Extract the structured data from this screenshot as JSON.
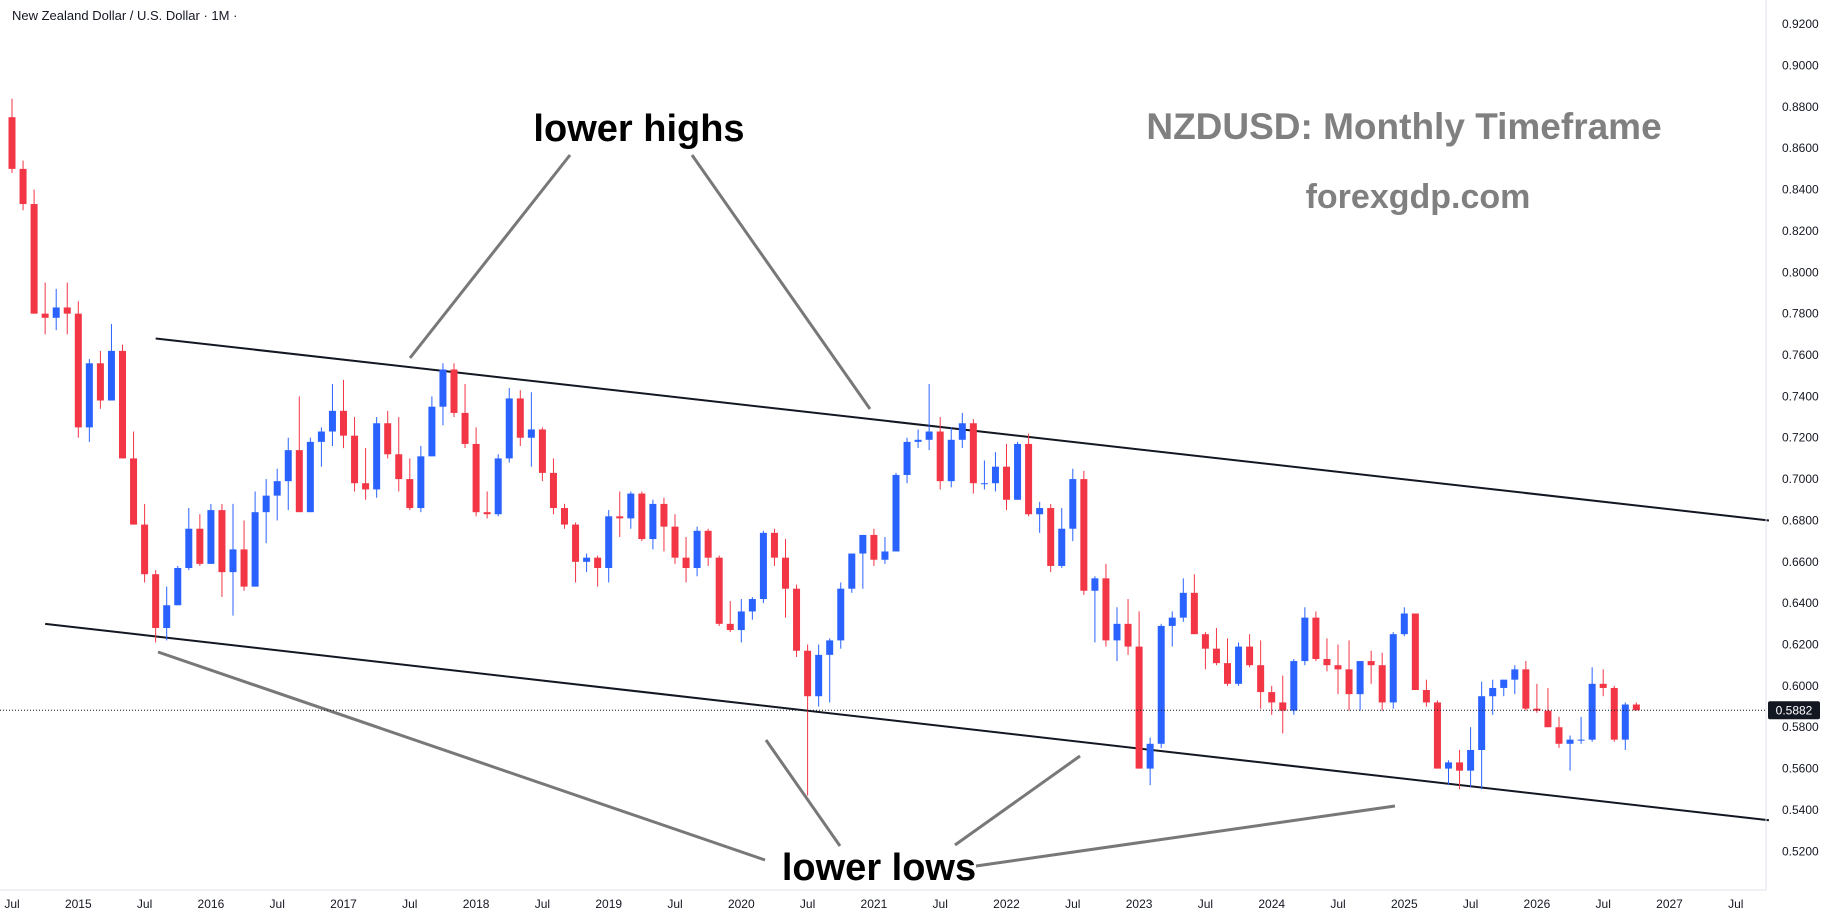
{
  "header": {
    "symbol": "New Zealand Dollar / U.S. Dollar · 1M ·"
  },
  "watermark": {
    "title": "NZDUSD: Monthly Timeframe",
    "site": "forexgdp.com"
  },
  "annotations": {
    "highs": "lower highs",
    "lows": "lower lows"
  },
  "colors": {
    "up": "#2962ff",
    "down": "#f23645",
    "axis": "#e0e3eb",
    "trend": "#131722",
    "pointer": "#787878",
    "price_tag": "#131722"
  },
  "chart_data": {
    "type": "candlestick",
    "timeframe": "1M",
    "x_start": "2014-07",
    "ylim": [
      0.51,
      0.922
    ],
    "yticks": [
      "0.9200",
      "0.9000",
      "0.8800",
      "0.8600",
      "0.8400",
      "0.8200",
      "0.8000",
      "0.7800",
      "0.7600",
      "0.7400",
      "0.7200",
      "0.7000",
      "0.6800",
      "0.6600",
      "0.6400",
      "0.6200",
      "0.6000",
      "0.5800",
      "0.5600",
      "0.5400",
      "0.5200"
    ],
    "xticks": [
      {
        "label": "Jul",
        "date": "2014-07"
      },
      {
        "label": "2015",
        "date": "2015-01"
      },
      {
        "label": "Jul",
        "date": "2015-07"
      },
      {
        "label": "2016",
        "date": "2016-01"
      },
      {
        "label": "Jul",
        "date": "2016-07"
      },
      {
        "label": "2017",
        "date": "2017-01"
      },
      {
        "label": "Jul",
        "date": "2017-07"
      },
      {
        "label": "2018",
        "date": "2018-01"
      },
      {
        "label": "Jul",
        "date": "2018-07"
      },
      {
        "label": "2019",
        "date": "2019-01"
      },
      {
        "label": "Jul",
        "date": "2019-07"
      },
      {
        "label": "2020",
        "date": "2020-01"
      },
      {
        "label": "Jul",
        "date": "2020-07"
      },
      {
        "label": "2021",
        "date": "2021-01"
      },
      {
        "label": "Jul",
        "date": "2021-07"
      },
      {
        "label": "2022",
        "date": "2022-01"
      },
      {
        "label": "Jul",
        "date": "2022-07"
      },
      {
        "label": "2023",
        "date": "2023-01"
      },
      {
        "label": "Jul",
        "date": "2023-07"
      },
      {
        "label": "2024",
        "date": "2024-01"
      },
      {
        "label": "Jul",
        "date": "2024-07"
      },
      {
        "label": "2025",
        "date": "2025-01"
      },
      {
        "label": "Jul",
        "date": "2025-07"
      },
      {
        "label": "2026",
        "date": "2026-01"
      },
      {
        "label": "Jul",
        "date": "2026-07"
      },
      {
        "label": "2027",
        "date": "2027-01"
      },
      {
        "label": "Jul",
        "date": "2027-07"
      }
    ],
    "last_price": "0.5882",
    "candles": [
      [
        0.875,
        0.884,
        0.848,
        0.85
      ],
      [
        0.85,
        0.854,
        0.83,
        0.833
      ],
      [
        0.833,
        0.84,
        0.78,
        0.78
      ],
      [
        0.78,
        0.795,
        0.77,
        0.778
      ],
      [
        0.778,
        0.792,
        0.772,
        0.783
      ],
      [
        0.783,
        0.795,
        0.77,
        0.78
      ],
      [
        0.78,
        0.786,
        0.72,
        0.725
      ],
      [
        0.725,
        0.758,
        0.718,
        0.756
      ],
      [
        0.756,
        0.762,
        0.734,
        0.738
      ],
      [
        0.738,
        0.775,
        0.738,
        0.762
      ],
      [
        0.762,
        0.765,
        0.71,
        0.71
      ],
      [
        0.71,
        0.723,
        0.678,
        0.678
      ],
      [
        0.678,
        0.688,
        0.65,
        0.654
      ],
      [
        0.654,
        0.656,
        0.621,
        0.628
      ],
      [
        0.628,
        0.648,
        0.622,
        0.639
      ],
      [
        0.639,
        0.658,
        0.639,
        0.657
      ],
      [
        0.657,
        0.686,
        0.656,
        0.676
      ],
      [
        0.676,
        0.683,
        0.658,
        0.659
      ],
      [
        0.659,
        0.688,
        0.659,
        0.685
      ],
      [
        0.685,
        0.688,
        0.643,
        0.655
      ],
      [
        0.655,
        0.688,
        0.634,
        0.666
      ],
      [
        0.666,
        0.68,
        0.646,
        0.648
      ],
      [
        0.648,
        0.694,
        0.648,
        0.684
      ],
      [
        0.684,
        0.7,
        0.669,
        0.692
      ],
      [
        0.692,
        0.705,
        0.68,
        0.699
      ],
      [
        0.699,
        0.72,
        0.685,
        0.714
      ],
      [
        0.714,
        0.74,
        0.685,
        0.684
      ],
      [
        0.684,
        0.72,
        0.684,
        0.718
      ],
      [
        0.718,
        0.725,
        0.706,
        0.723
      ],
      [
        0.723,
        0.746,
        0.716,
        0.733
      ],
      [
        0.733,
        0.748,
        0.715,
        0.721
      ],
      [
        0.721,
        0.73,
        0.694,
        0.698
      ],
      [
        0.698,
        0.715,
        0.69,
        0.695
      ],
      [
        0.695,
        0.73,
        0.691,
        0.727
      ],
      [
        0.727,
        0.733,
        0.71,
        0.712
      ],
      [
        0.712,
        0.73,
        0.694,
        0.7
      ],
      [
        0.7,
        0.71,
        0.685,
        0.686
      ],
      [
        0.686,
        0.716,
        0.684,
        0.711
      ],
      [
        0.711,
        0.74,
        0.711,
        0.735
      ],
      [
        0.735,
        0.756,
        0.726,
        0.753
      ],
      [
        0.753,
        0.756,
        0.73,
        0.732
      ],
      [
        0.732,
        0.746,
        0.715,
        0.717
      ],
      [
        0.717,
        0.725,
        0.682,
        0.684
      ],
      [
        0.684,
        0.694,
        0.681,
        0.683
      ],
      [
        0.683,
        0.712,
        0.682,
        0.71
      ],
      [
        0.71,
        0.744,
        0.708,
        0.739
      ],
      [
        0.739,
        0.743,
        0.716,
        0.72
      ],
      [
        0.72,
        0.742,
        0.706,
        0.724
      ],
      [
        0.724,
        0.725,
        0.699,
        0.703
      ],
      [
        0.703,
        0.71,
        0.683,
        0.686
      ],
      [
        0.686,
        0.688,
        0.676,
        0.678
      ],
      [
        0.678,
        0.679,
        0.65,
        0.66
      ],
      [
        0.66,
        0.664,
        0.655,
        0.662
      ],
      [
        0.662,
        0.663,
        0.648,
        0.657
      ],
      [
        0.657,
        0.685,
        0.65,
        0.682
      ],
      [
        0.682,
        0.694,
        0.672,
        0.681
      ],
      [
        0.681,
        0.694,
        0.676,
        0.693
      ],
      [
        0.693,
        0.694,
        0.67,
        0.671
      ],
      [
        0.671,
        0.69,
        0.666,
        0.688
      ],
      [
        0.688,
        0.691,
        0.665,
        0.677
      ],
      [
        0.677,
        0.683,
        0.659,
        0.662
      ],
      [
        0.662,
        0.672,
        0.65,
        0.657
      ],
      [
        0.657,
        0.677,
        0.653,
        0.675
      ],
      [
        0.675,
        0.676,
        0.658,
        0.662
      ],
      [
        0.662,
        0.663,
        0.629,
        0.63
      ],
      [
        0.63,
        0.641,
        0.626,
        0.627
      ],
      [
        0.627,
        0.642,
        0.621,
        0.636
      ],
      [
        0.636,
        0.643,
        0.632,
        0.642
      ],
      [
        0.642,
        0.675,
        0.64,
        0.674
      ],
      [
        0.674,
        0.676,
        0.658,
        0.662
      ],
      [
        0.662,
        0.671,
        0.633,
        0.647
      ],
      [
        0.647,
        0.649,
        0.614,
        0.617
      ],
      [
        0.617,
        0.62,
        0.547,
        0.595
      ],
      [
        0.595,
        0.62,
        0.59,
        0.615
      ],
      [
        0.615,
        0.623,
        0.592,
        0.622
      ],
      [
        0.622,
        0.65,
        0.618,
        0.647
      ],
      [
        0.647,
        0.664,
        0.645,
        0.664
      ],
      [
        0.664,
        0.673,
        0.647,
        0.673
      ],
      [
        0.673,
        0.676,
        0.658,
        0.661
      ],
      [
        0.661,
        0.672,
        0.659,
        0.665
      ],
      [
        0.665,
        0.703,
        0.665,
        0.702
      ],
      [
        0.702,
        0.72,
        0.698,
        0.718
      ],
      [
        0.718,
        0.724,
        0.715,
        0.719
      ],
      [
        0.719,
        0.746,
        0.714,
        0.723
      ],
      [
        0.723,
        0.73,
        0.695,
        0.699
      ],
      [
        0.699,
        0.725,
        0.696,
        0.719
      ],
      [
        0.719,
        0.732,
        0.715,
        0.727
      ],
      [
        0.727,
        0.729,
        0.693,
        0.698
      ],
      [
        0.698,
        0.709,
        0.695,
        0.698
      ],
      [
        0.698,
        0.713,
        0.694,
        0.706
      ],
      [
        0.706,
        0.717,
        0.685,
        0.69
      ],
      [
        0.69,
        0.718,
        0.69,
        0.717
      ],
      [
        0.717,
        0.722,
        0.682,
        0.683
      ],
      [
        0.683,
        0.689,
        0.674,
        0.686
      ],
      [
        0.686,
        0.688,
        0.655,
        0.658
      ],
      [
        0.658,
        0.686,
        0.657,
        0.676
      ],
      [
        0.676,
        0.705,
        0.67,
        0.7
      ],
      [
        0.7,
        0.704,
        0.644,
        0.646
      ],
      [
        0.646,
        0.653,
        0.621,
        0.652
      ],
      [
        0.652,
        0.659,
        0.619,
        0.622
      ],
      [
        0.622,
        0.638,
        0.612,
        0.63
      ],
      [
        0.63,
        0.642,
        0.615,
        0.619
      ],
      [
        0.619,
        0.636,
        0.56,
        0.56
      ],
      [
        0.56,
        0.575,
        0.552,
        0.572
      ],
      [
        0.572,
        0.63,
        0.57,
        0.629
      ],
      [
        0.629,
        0.636,
        0.619,
        0.633
      ],
      [
        0.633,
        0.652,
        0.631,
        0.645
      ],
      [
        0.645,
        0.654,
        0.625,
        0.625
      ],
      [
        0.625,
        0.626,
        0.608,
        0.618
      ],
      [
        0.618,
        0.628,
        0.61,
        0.611
      ],
      [
        0.611,
        0.623,
        0.6,
        0.601
      ],
      [
        0.601,
        0.621,
        0.6,
        0.619
      ],
      [
        0.619,
        0.625,
        0.609,
        0.61
      ],
      [
        0.61,
        0.622,
        0.589,
        0.597
      ],
      [
        0.597,
        0.6,
        0.586,
        0.592
      ],
      [
        0.592,
        0.605,
        0.577,
        0.588
      ],
      [
        0.588,
        0.613,
        0.586,
        0.612
      ],
      [
        0.612,
        0.638,
        0.61,
        0.633
      ],
      [
        0.633,
        0.636,
        0.612,
        0.613
      ],
      [
        0.613,
        0.623,
        0.607,
        0.61
      ],
      [
        0.61,
        0.62,
        0.596,
        0.608
      ],
      [
        0.608,
        0.622,
        0.588,
        0.596
      ],
      [
        0.596,
        0.61,
        0.588,
        0.612
      ],
      [
        0.612,
        0.617,
        0.601,
        0.61
      ],
      [
        0.61,
        0.616,
        0.588,
        0.592
      ],
      [
        0.592,
        0.626,
        0.589,
        0.625
      ],
      [
        0.625,
        0.638,
        0.624,
        0.635
      ],
      [
        0.635,
        0.635,
        0.598,
        0.598
      ],
      [
        0.598,
        0.603,
        0.59,
        0.592
      ],
      [
        0.592,
        0.593,
        0.56,
        0.56
      ],
      [
        0.56,
        0.564,
        0.552,
        0.563
      ],
      [
        0.563,
        0.569,
        0.55,
        0.559
      ],
      [
        0.559,
        0.58,
        0.551,
        0.569
      ],
      [
        0.569,
        0.602,
        0.55,
        0.595
      ],
      [
        0.595,
        0.603,
        0.586,
        0.599
      ],
      [
        0.599,
        0.603,
        0.595,
        0.603
      ],
      [
        0.603,
        0.61,
        0.596,
        0.608
      ],
      [
        0.608,
        0.612,
        0.588,
        0.589
      ],
      [
        0.589,
        0.601,
        0.587,
        0.588
      ],
      [
        0.588,
        0.599,
        0.581,
        0.58
      ],
      [
        0.58,
        0.585,
        0.57,
        0.572
      ],
      [
        0.572,
        0.576,
        0.559,
        0.574
      ],
      [
        0.574,
        0.585,
        0.572,
        0.574
      ],
      [
        0.574,
        0.609,
        0.573,
        0.601
      ],
      [
        0.601,
        0.608,
        0.595,
        0.599
      ],
      [
        0.599,
        0.6,
        0.573,
        0.574
      ],
      [
        0.574,
        0.592,
        0.569,
        0.591
      ],
      [
        0.591,
        0.592,
        0.588,
        0.5882
      ]
    ],
    "trendlines": [
      {
        "name": "upper-channel",
        "from": {
          "date": "2015-08",
          "price": 0.768
        },
        "to": {
          "date": "2027-10",
          "price": 0.68
        }
      },
      {
        "name": "lower-channel",
        "from": {
          "date": "2014-10",
          "price": 0.63
        },
        "to": {
          "date": "2027-10",
          "price": 0.535
        }
      }
    ]
  }
}
